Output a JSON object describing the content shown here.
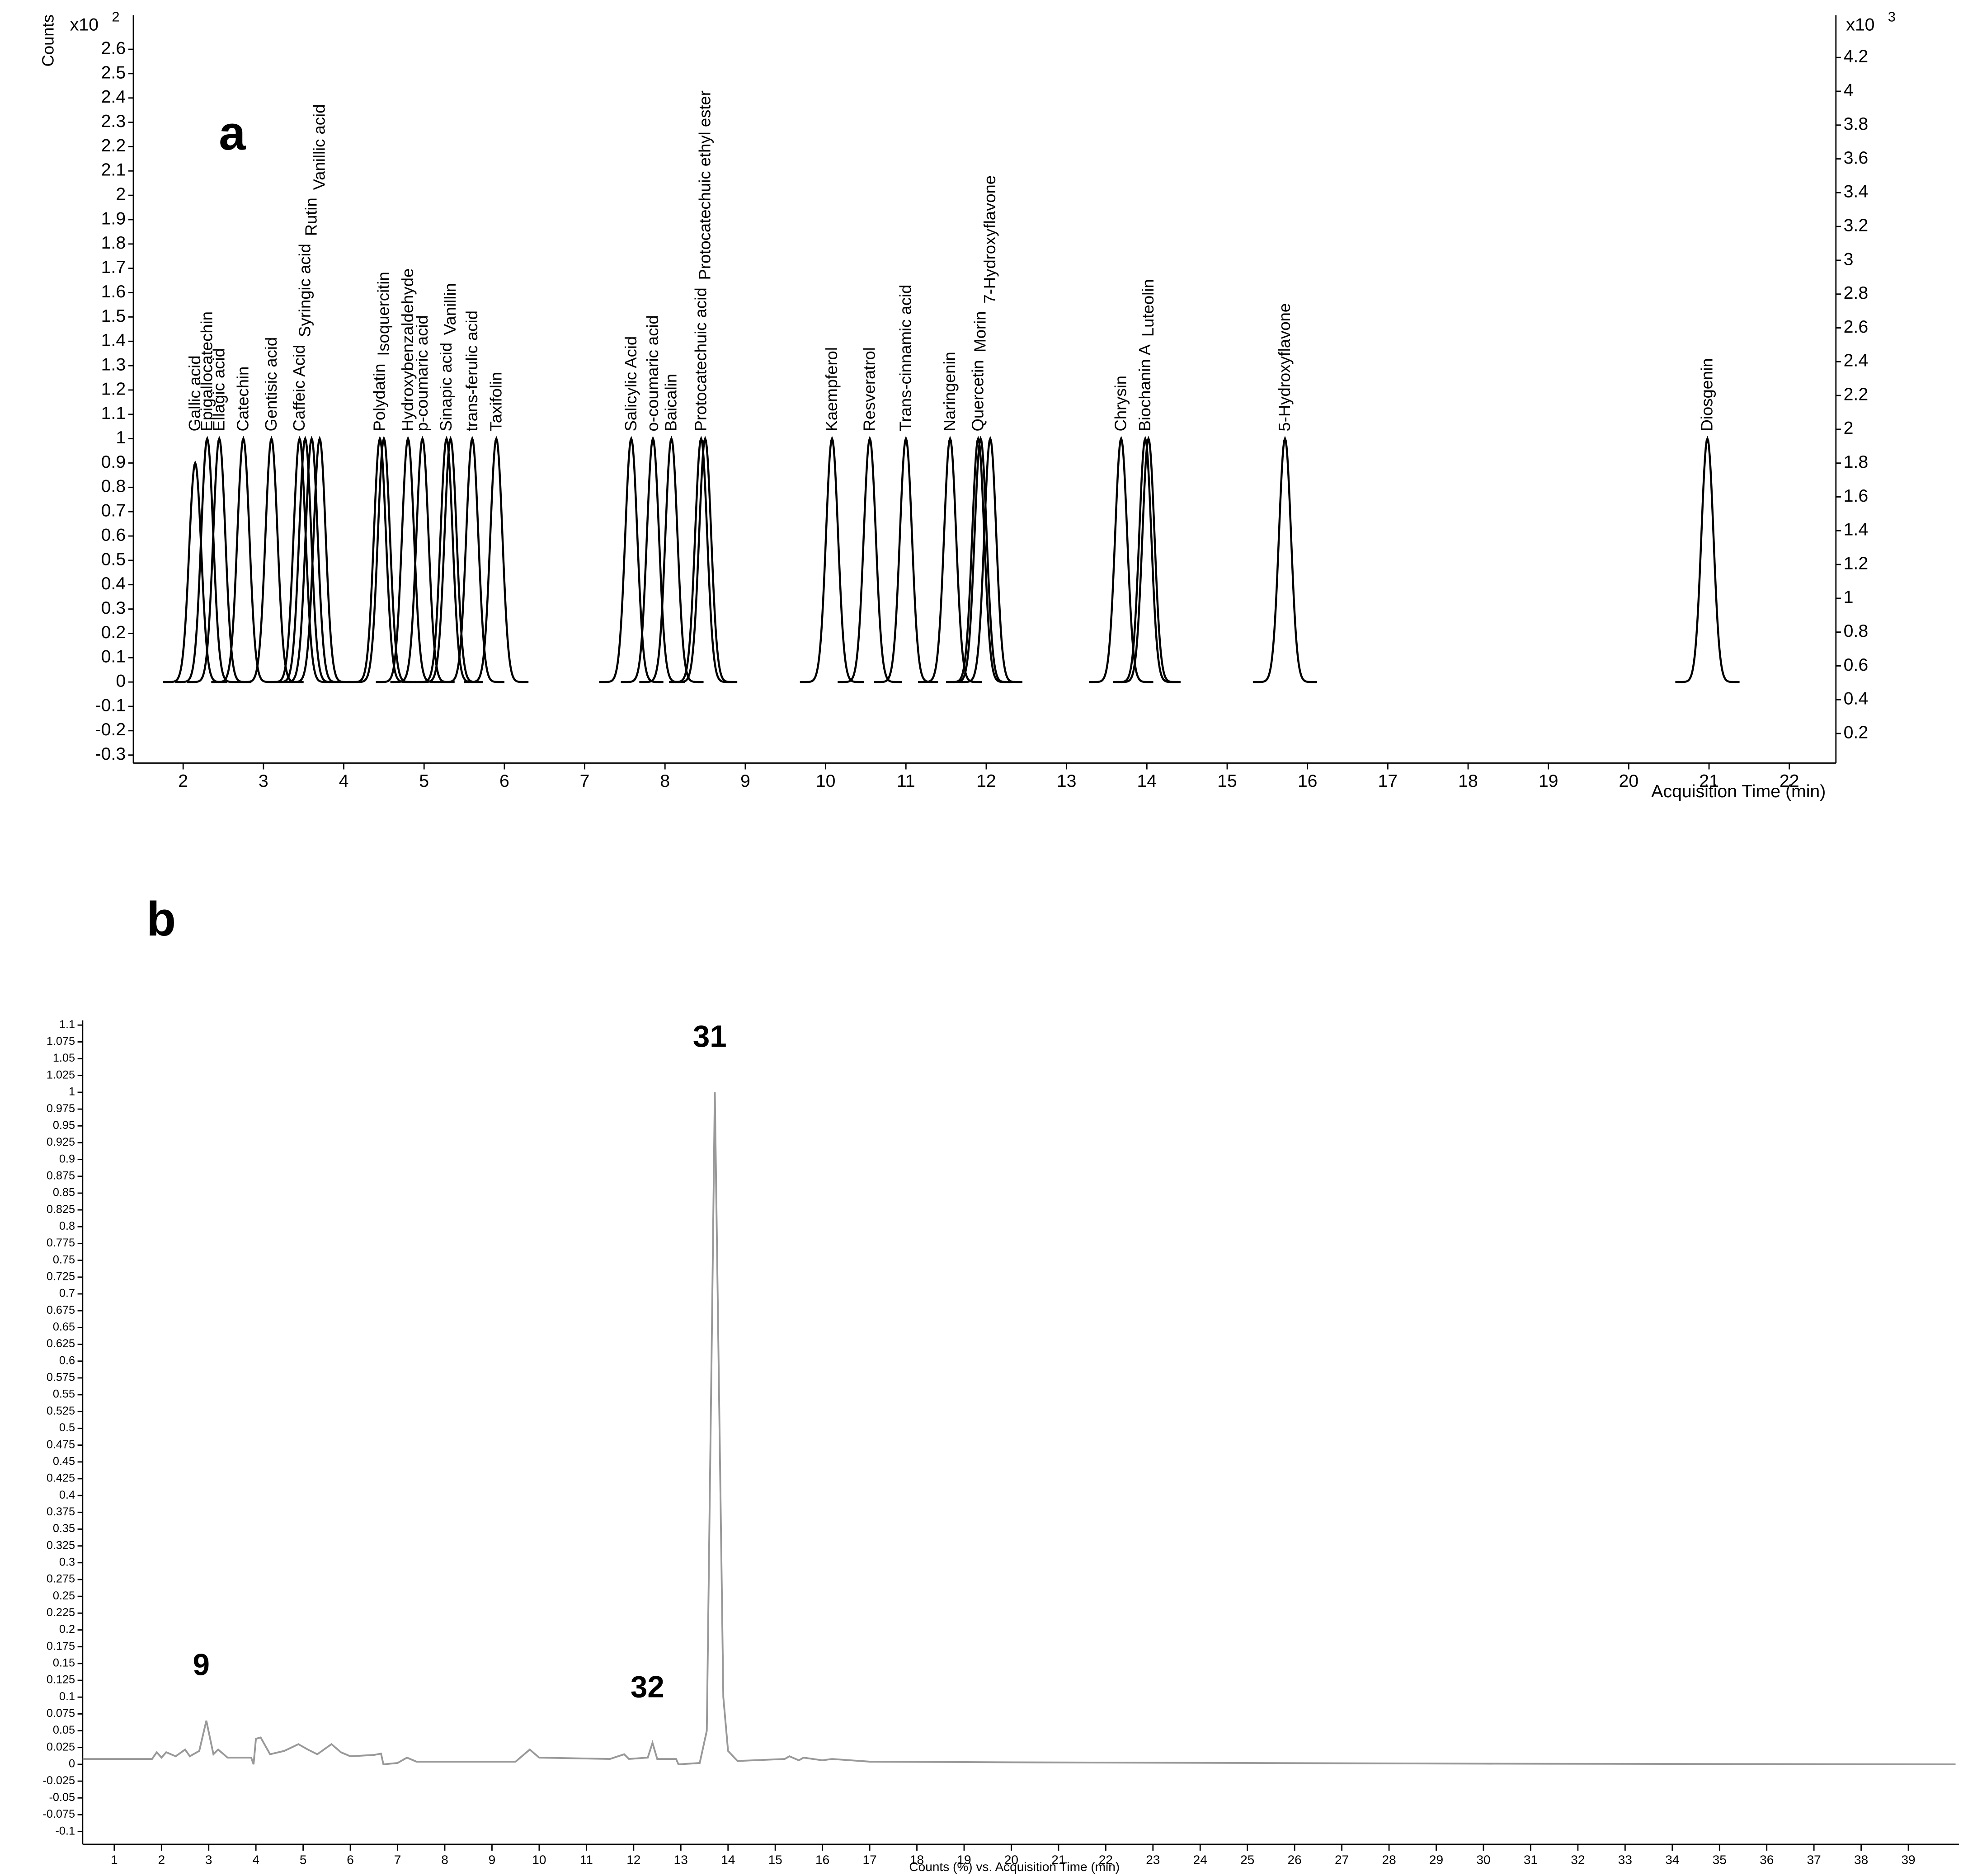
{
  "chart_data": [
    {
      "type": "peaks",
      "panel": "a",
      "ylabel": "Counts",
      "xlabel": "Acquisition Time (min)",
      "y_scale_label": "x10",
      "y_scale_exponent": "2",
      "y2_scale_label": "x10",
      "y2_scale_exponent": "3",
      "color": "#000000",
      "categories": [
        "Gallic acid",
        "Epigallocatechin",
        "Ellagic acid",
        "Catechin",
        "Gentisic acid",
        "Caffeic Acid",
        "Syringic acid",
        "Rutin",
        "Vanillic acid",
        "Polydatin",
        "Isoquercitin",
        "Hydroxybenzaldehyde",
        "p-coumaric acid",
        "Sinapic acid",
        "Vanillin",
        "trans-ferulic acid",
        "Taxifolin",
        "Salicylic Acid",
        "o-coumaric acid",
        "Baicalin",
        "Protocatechuic acid",
        "Protocatechuic ethyl ester",
        "Kaempferol",
        "Resveratrol",
        "Trans-cinnamic acid",
        "Naringenin",
        "Quercetin",
        "Morin",
        "7-Hydroxyflavone",
        "Chrysin",
        "Biochanin A",
        "Luteolin",
        "5-Hydroxyflavone",
        "Diosgenin"
      ],
      "x": [
        2.15,
        2.3,
        2.45,
        2.75,
        3.1,
        3.45,
        3.52,
        3.6,
        3.7,
        4.45,
        4.5,
        4.8,
        4.98,
        5.28,
        5.33,
        5.6,
        5.9,
        7.58,
        7.85,
        8.08,
        8.45,
        8.5,
        10.08,
        10.55,
        11.0,
        11.55,
        11.9,
        11.93,
        12.05,
        13.68,
        13.98,
        14.02,
        15.72,
        20.98
      ],
      "values": [
        0.9,
        1,
        1,
        1,
        1,
        1,
        1,
        1,
        1,
        1,
        1,
        1,
        1,
        1,
        1,
        1,
        1,
        1,
        1,
        1,
        1,
        1,
        1,
        1,
        1,
        1,
        1,
        1,
        1,
        1,
        1,
        1,
        1,
        1
      ],
      "xlim": [
        1.38,
        22.58
      ],
      "ylim": [
        -0.333,
        2.74
      ],
      "y2lim": [
        0.025,
        4.45
      ],
      "xticks": [
        2,
        3,
        4,
        5,
        6,
        7,
        8,
        9,
        10,
        11,
        12,
        13,
        14,
        15,
        16,
        17,
        18,
        19,
        20,
        21,
        22
      ],
      "yticks": [
        -0.3,
        -0.2,
        -0.1,
        0,
        0.1,
        0.2,
        0.3,
        0.4,
        0.5,
        0.6,
        0.7,
        0.8,
        0.9,
        1,
        1.1,
        1.2,
        1.3,
        1.4,
        1.5,
        1.6,
        1.7,
        1.8,
        1.9,
        2,
        2.1,
        2.2,
        2.3,
        2.4,
        2.5,
        2.6
      ],
      "y2ticks": [
        0.2,
        0.4,
        0.6,
        0.8,
        1,
        1.2,
        1.4,
        1.6,
        1.8,
        2,
        2.2,
        2.4,
        2.6,
        2.8,
        3,
        3.2,
        3.4,
        3.6,
        3.8,
        4,
        4.2
      ]
    },
    {
      "type": "line",
      "panel": "b",
      "xlabel": "Counts (%) vs. Acquisition Time (min)",
      "color": "#999999",
      "x": [
        0.33,
        1.8,
        1.9,
        2.0,
        2.1,
        2.3,
        2.5,
        2.6,
        2.8,
        2.95,
        3.1,
        3.2,
        3.4,
        3.9,
        3.95,
        4.0,
        4.1,
        4.3,
        4.6,
        4.9,
        5.1,
        5.3,
        5.6,
        5.8,
        6.0,
        6.5,
        6.65,
        6.7,
        7.0,
        7.2,
        7.4,
        9.5,
        9.8,
        10.0,
        11.5,
        11.8,
        11.9,
        12.3,
        12.4,
        12.5,
        12.9,
        12.95,
        13.4,
        13.55,
        13.65,
        13.72,
        13.8,
        13.9,
        14.0,
        14.2,
        15.2,
        15.3,
        15.5,
        15.6,
        16.0,
        16.2,
        17,
        20,
        30,
        40
      ],
      "values": [
        0.008,
        0.008,
        0.018,
        0.01,
        0.018,
        0.012,
        0.022,
        0.012,
        0.02,
        0.065,
        0.015,
        0.022,
        0.01,
        0.01,
        0.0,
        0.038,
        0.04,
        0.015,
        0.02,
        0.03,
        0.022,
        0.015,
        0.03,
        0.018,
        0.012,
        0.014,
        0.016,
        0.0,
        0.002,
        0.01,
        0.004,
        0.004,
        0.022,
        0.01,
        0.008,
        0.015,
        0.008,
        0.01,
        0.032,
        0.008,
        0.008,
        0.0,
        0.002,
        0.05,
        0.6,
        1.0,
        0.6,
        0.1,
        0.02,
        0.005,
        0.008,
        0.012,
        0.006,
        0.01,
        0.006,
        0.008,
        0.004,
        0.003,
        0.001,
        0.0
      ],
      "peak_labels": [
        {
          "label": "9",
          "x": 2.95,
          "y": 0.065
        },
        {
          "label": "32",
          "x": 12.4,
          "y": 0.032
        },
        {
          "label": "31",
          "x": 13.72,
          "y": 1.0
        }
      ],
      "xlim": [
        0.33,
        40.07
      ],
      "ylim": [
        -0.119,
        1.107
      ],
      "xticks": [
        1,
        2,
        3,
        4,
        5,
        6,
        7,
        8,
        9,
        10,
        11,
        12,
        13,
        14,
        15,
        16,
        17,
        18,
        19,
        20,
        21,
        22,
        23,
        24,
        25,
        26,
        27,
        28,
        29,
        30,
        31,
        32,
        33,
        34,
        35,
        36,
        37,
        38,
        39
      ],
      "yticks": [
        -0.1,
        -0.075,
        -0.05,
        -0.025,
        0,
        0.025,
        0.05,
        0.075,
        0.1,
        0.125,
        0.15,
        0.175,
        0.2,
        0.225,
        0.25,
        0.275,
        0.3,
        0.325,
        0.35,
        0.375,
        0.4,
        0.425,
        0.45,
        0.475,
        0.5,
        0.525,
        0.55,
        0.575,
        0.6,
        0.625,
        0.65,
        0.675,
        0.7,
        0.725,
        0.75,
        0.775,
        0.8,
        0.825,
        0.85,
        0.875,
        0.9,
        0.925,
        0.95,
        0.975,
        1,
        1.025,
        1.05,
        1.075,
        1.1
      ]
    }
  ]
}
